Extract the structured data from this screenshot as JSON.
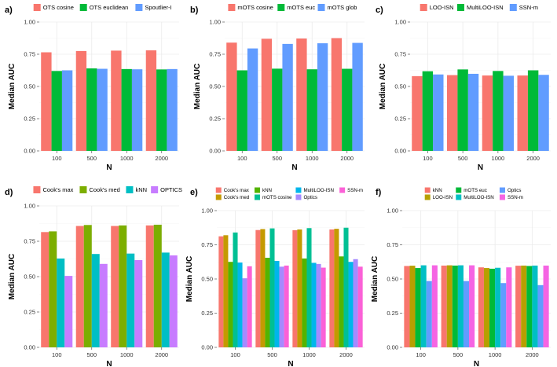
{
  "chart_data": [
    {
      "type": "bar",
      "tag": "a)",
      "xlabel": "N",
      "ylabel": "Median AUC",
      "categories": [
        "100",
        "500",
        "1000",
        "2000"
      ],
      "ylim": [
        0,
        1
      ],
      "yticks": [
        "0.00",
        "0.25",
        "0.50",
        "0.75",
        "1.00"
      ],
      "legend_position": "top",
      "grid": true,
      "series": [
        {
          "name": "OTS cosine",
          "color": "#F8766D",
          "values": [
            0.765,
            0.775,
            0.778,
            0.78
          ]
        },
        {
          "name": "OTS euclidean",
          "color": "#00BA38",
          "values": [
            0.62,
            0.64,
            0.635,
            0.632
          ]
        },
        {
          "name": "Spoutlier-I",
          "color": "#619CFF",
          "values": [
            0.625,
            0.637,
            0.633,
            0.635
          ]
        }
      ]
    },
    {
      "type": "bar",
      "tag": "b)",
      "xlabel": "N",
      "ylabel": "Median AUC",
      "categories": [
        "100",
        "500",
        "1000",
        "2000"
      ],
      "ylim": [
        0,
        1
      ],
      "yticks": [
        "0.00",
        "0.25",
        "0.50",
        "0.75",
        "1.00"
      ],
      "legend_position": "top",
      "grid": true,
      "series": [
        {
          "name": "mOTS cosine",
          "color": "#F8766D",
          "values": [
            0.84,
            0.87,
            0.872,
            0.875
          ]
        },
        {
          "name": "mOTS euc",
          "color": "#00BA38",
          "values": [
            0.625,
            0.638,
            0.633,
            0.637
          ]
        },
        {
          "name": "mOTS glob",
          "color": "#619CFF",
          "values": [
            0.795,
            0.83,
            0.835,
            0.838
          ]
        }
      ]
    },
    {
      "type": "bar",
      "tag": "c)",
      "xlabel": "N",
      "ylabel": "Median AUC",
      "categories": [
        "100",
        "500",
        "1000",
        "2000"
      ],
      "ylim": [
        0,
        1
      ],
      "yticks": [
        "0.00",
        "0.25",
        "0.50",
        "0.75",
        "1.00"
      ],
      "legend_position": "top",
      "grid": true,
      "series": [
        {
          "name": "LOO-ISN",
          "color": "#F8766D",
          "values": [
            0.58,
            0.588,
            0.585,
            0.585
          ]
        },
        {
          "name": "MultiLOO-ISN",
          "color": "#00BA38",
          "values": [
            0.618,
            0.632,
            0.62,
            0.625
          ]
        },
        {
          "name": "SSN-m",
          "color": "#619CFF",
          "values": [
            0.593,
            0.598,
            0.583,
            0.59
          ]
        }
      ]
    },
    {
      "type": "bar",
      "tag": "d)",
      "xlabel": "N",
      "ylabel": "Median AUC",
      "categories": [
        "100",
        "500",
        "1000",
        "2000"
      ],
      "ylim": [
        0,
        1
      ],
      "yticks": [
        "0.00",
        "0.25",
        "0.50",
        "0.75",
        "1.00"
      ],
      "legend_position": "top",
      "grid": true,
      "series": [
        {
          "name": "Cook's max",
          "color": "#F8766D",
          "values": [
            0.815,
            0.858,
            0.858,
            0.862
          ]
        },
        {
          "name": "Cook's med",
          "color": "#7CAE00",
          "values": [
            0.82,
            0.865,
            0.862,
            0.867
          ]
        },
        {
          "name": "kNN",
          "color": "#00BFC4",
          "values": [
            0.628,
            0.66,
            0.663,
            0.67
          ]
        },
        {
          "name": "OPTICS",
          "color": "#C77CFF",
          "values": [
            0.505,
            0.59,
            0.617,
            0.65
          ]
        }
      ]
    },
    {
      "type": "bar",
      "tag": "e)",
      "xlabel": "N",
      "ylabel": "Median AUC",
      "categories": [
        "100",
        "500",
        "1000",
        "2000"
      ],
      "ylim": [
        0,
        1
      ],
      "yticks": [
        "0.00",
        "0.25",
        "0.50",
        "0.75",
        "1.00"
      ],
      "legend_position": "top",
      "grid": true,
      "series": [
        {
          "name": "Cook's max",
          "color": "#F8766D",
          "values": [
            0.812,
            0.858,
            0.857,
            0.862
          ]
        },
        {
          "name": "Cook's med",
          "color": "#C49A00",
          "values": [
            0.82,
            0.865,
            0.862,
            0.867
          ]
        },
        {
          "name": "kNN",
          "color": "#53B400",
          "values": [
            0.625,
            0.655,
            0.65,
            0.665
          ]
        },
        {
          "name": "mOTS cosine",
          "color": "#00C094",
          "values": [
            0.84,
            0.87,
            0.872,
            0.875
          ]
        },
        {
          "name": "MultiLOO-ISN",
          "color": "#00B6EB",
          "values": [
            0.62,
            0.632,
            0.618,
            0.625
          ]
        },
        {
          "name": "Optics",
          "color": "#A58AFF",
          "values": [
            0.505,
            0.59,
            0.61,
            0.645
          ]
        },
        {
          "name": "SSN-m",
          "color": "#FB61D7",
          "values": [
            0.593,
            0.598,
            0.583,
            0.59
          ]
        }
      ]
    },
    {
      "type": "bar",
      "tag": "f)",
      "xlabel": "N",
      "ylabel": "Median AUC",
      "categories": [
        "100",
        "500",
        "1000",
        "2000"
      ],
      "ylim": [
        0,
        1
      ],
      "yticks": [
        "0.00",
        "0.25",
        "0.50",
        "0.75",
        "1.00"
      ],
      "legend_position": "top",
      "grid": true,
      "series": [
        {
          "name": "kNN",
          "color": "#F8766D",
          "values": [
            0.595,
            0.598,
            0.585,
            0.597
          ]
        },
        {
          "name": "LOO-ISN",
          "color": "#B79F00",
          "values": [
            0.597,
            0.6,
            0.58,
            0.598
          ]
        },
        {
          "name": "mOTS euc",
          "color": "#00BA38",
          "values": [
            0.58,
            0.598,
            0.575,
            0.595
          ]
        },
        {
          "name": "MultiLOO-ISN",
          "color": "#00BFC4",
          "values": [
            0.6,
            0.6,
            0.582,
            0.598
          ]
        },
        {
          "name": "Optics",
          "color": "#619CFF",
          "values": [
            0.485,
            0.485,
            0.47,
            0.455
          ]
        },
        {
          "name": "SSN-m",
          "color": "#F564E3",
          "values": [
            0.6,
            0.6,
            0.585,
            0.598
          ]
        }
      ]
    }
  ]
}
